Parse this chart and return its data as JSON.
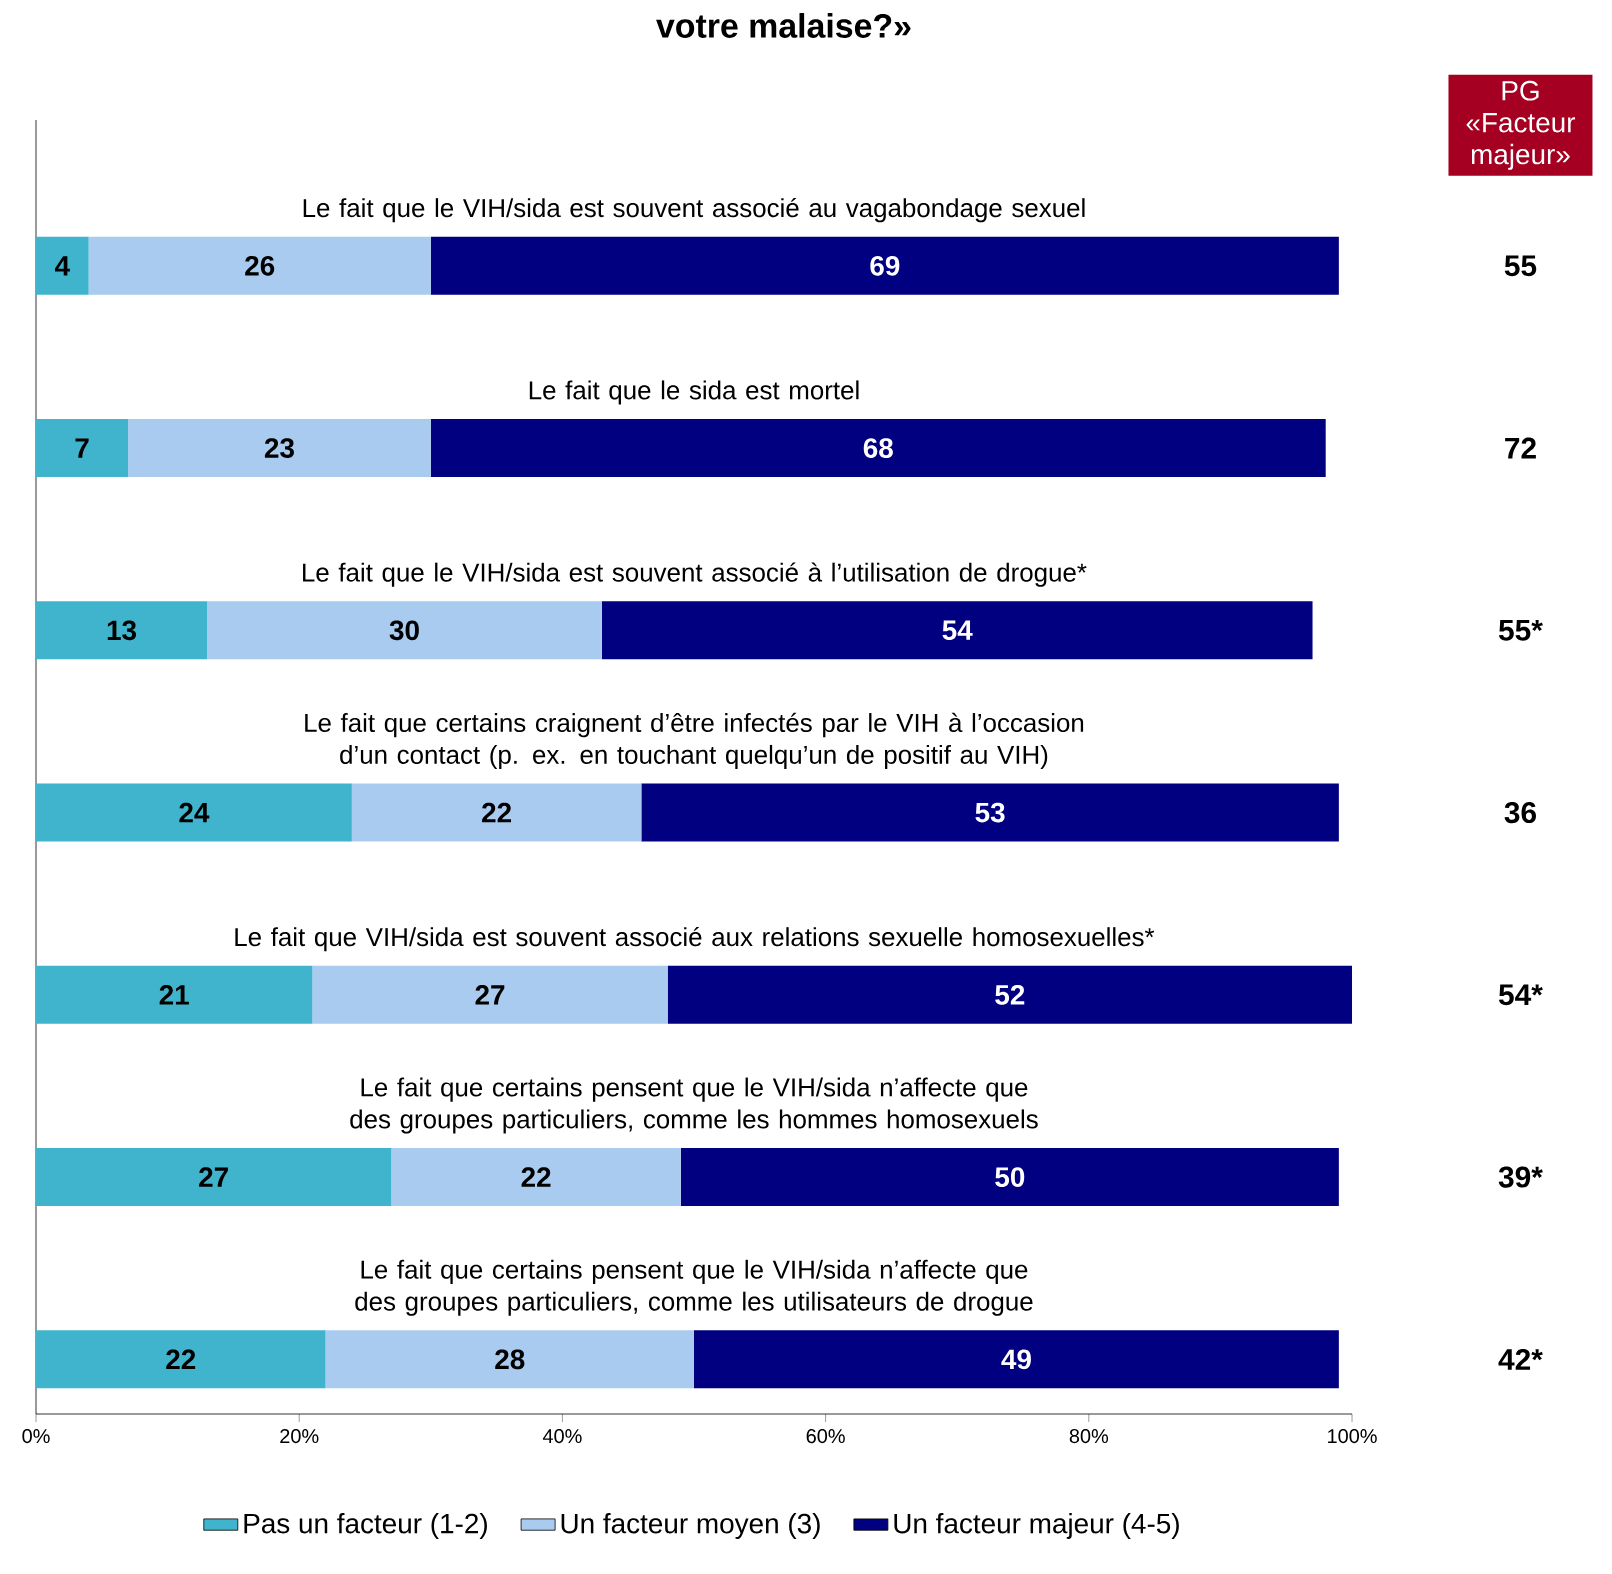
{
  "chart_data": {
    "type": "bar",
    "orientation": "horizontal",
    "stacked": true,
    "title": "votre malaise?»",
    "categories": [
      "Le fait que le VIH/sida est souvent associé au vagabondage sexuel",
      "Le fait que le sida est mortel",
      "Le fait que le VIH/sida est souvent associé à l’utilisation de drogue*",
      "Le fait que certains craignent d’être infectés par le VIH à l’occasion d’un contact (p. ex. en touchant quelqu’un de positif au VIH)",
      "Le fait que VIH/sida est souvent associé aux relations sexuelle homosexuelles*",
      "Le fait que certains pensent que le VIH/sida n’affecte que des groupes particuliers, comme les hommes homosexuels",
      "Le fait que certains pensent que le VIH/sida n’affecte que des groupes particuliers, comme les utilisateurs de drogue"
    ],
    "series": [
      {
        "name": "Pas un facteur (1-2)",
        "color": "#40b4cc",
        "values": [
          4,
          7,
          13,
          24,
          21,
          27,
          22
        ]
      },
      {
        "name": "Un facteur moyen (3)",
        "color": "#a9cbf0",
        "values": [
          26,
          23,
          30,
          22,
          27,
          22,
          28
        ]
      },
      {
        "name": "Un facteur majeur (4-5)",
        "color": "#000080",
        "values": [
          69,
          68,
          54,
          53,
          52,
          50,
          49
        ]
      }
    ],
    "data_labels": true,
    "xlim": [
      0,
      100
    ],
    "xticks": [
      {
        "value": 0,
        "label": "0%"
      },
      {
        "value": 20,
        "label": "20%"
      },
      {
        "value": 40,
        "label": "40%"
      },
      {
        "value": 60,
        "label": "60%"
      },
      {
        "value": 80,
        "label": "80%"
      },
      {
        "value": 100,
        "label": "100%"
      }
    ],
    "grid": false,
    "legend": "bottom",
    "annotations": [
      "PG «Facteur majeur»",
      "55",
      "72",
      "55*",
      "36",
      "54*",
      "39*",
      "42*"
    ]
  }
}
